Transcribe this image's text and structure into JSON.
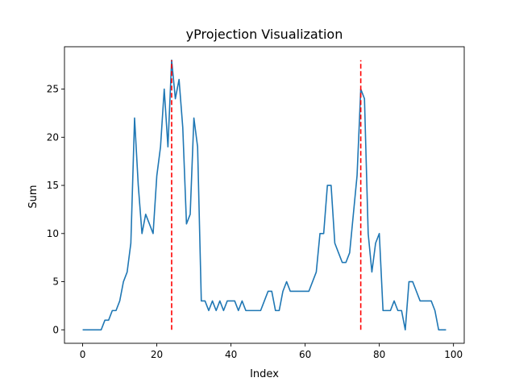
{
  "chart_data": {
    "type": "line",
    "title": "yProjection Visualization",
    "xlabel": "Index",
    "ylabel": "Sum",
    "xlim": [
      -4.9,
      102.9
    ],
    "ylim": [
      -1.4,
      29.4
    ],
    "xticks": [
      0,
      20,
      40,
      60,
      80,
      100
    ],
    "yticks": [
      0,
      5,
      10,
      15,
      20,
      25
    ],
    "grid": false,
    "legend": "none",
    "colors": {
      "series": "#1f77b4",
      "markers": "#ff0000"
    },
    "series": [
      {
        "x": [
          0,
          1,
          2,
          3,
          4,
          5,
          6,
          7,
          8,
          9,
          10,
          11,
          12,
          13,
          14,
          15,
          16,
          17,
          18,
          19,
          20,
          21,
          22,
          23,
          24,
          25,
          26,
          27,
          28,
          29,
          30,
          31,
          32,
          33,
          34,
          35,
          36,
          37,
          38,
          39,
          40,
          41,
          42,
          43,
          44,
          45,
          46,
          47,
          48,
          49,
          50,
          51,
          52,
          53,
          54,
          55,
          56,
          57,
          58,
          59,
          60,
          61,
          62,
          63,
          64,
          65,
          66,
          67,
          68,
          69,
          70,
          71,
          72,
          73,
          74,
          75,
          76,
          77,
          78,
          79,
          80,
          81,
          82,
          83,
          84,
          85,
          86,
          87,
          88,
          89,
          90,
          91,
          92,
          93,
          94,
          95,
          96,
          97,
          98
        ],
        "values": [
          0,
          0,
          0,
          0,
          0,
          0,
          1,
          1,
          2,
          2,
          3,
          5,
          6,
          9,
          22,
          15,
          10,
          12,
          11,
          10,
          16,
          19,
          25,
          19,
          28,
          24,
          26,
          21,
          11,
          12,
          22,
          19,
          3,
          3,
          2,
          3,
          2,
          3,
          2,
          3,
          3,
          3,
          2,
          3,
          2,
          2,
          2,
          2,
          2,
          3,
          4,
          4,
          2,
          2,
          4,
          5,
          4,
          4,
          4,
          4,
          4,
          4,
          5,
          6,
          10,
          10,
          15,
          15,
          9,
          8,
          7,
          7,
          8,
          12,
          16,
          25,
          24,
          10,
          6,
          9,
          10,
          2,
          2,
          2,
          3,
          2,
          2,
          0,
          5,
          5,
          4,
          3,
          3,
          3,
          3,
          2,
          0,
          0,
          0
        ]
      }
    ],
    "vlines": [
      {
        "x": 24,
        "y_range": [
          0,
          28
        ],
        "style": "dashed"
      },
      {
        "x": 75,
        "y_range": [
          0,
          28
        ],
        "style": "dashed"
      }
    ]
  }
}
